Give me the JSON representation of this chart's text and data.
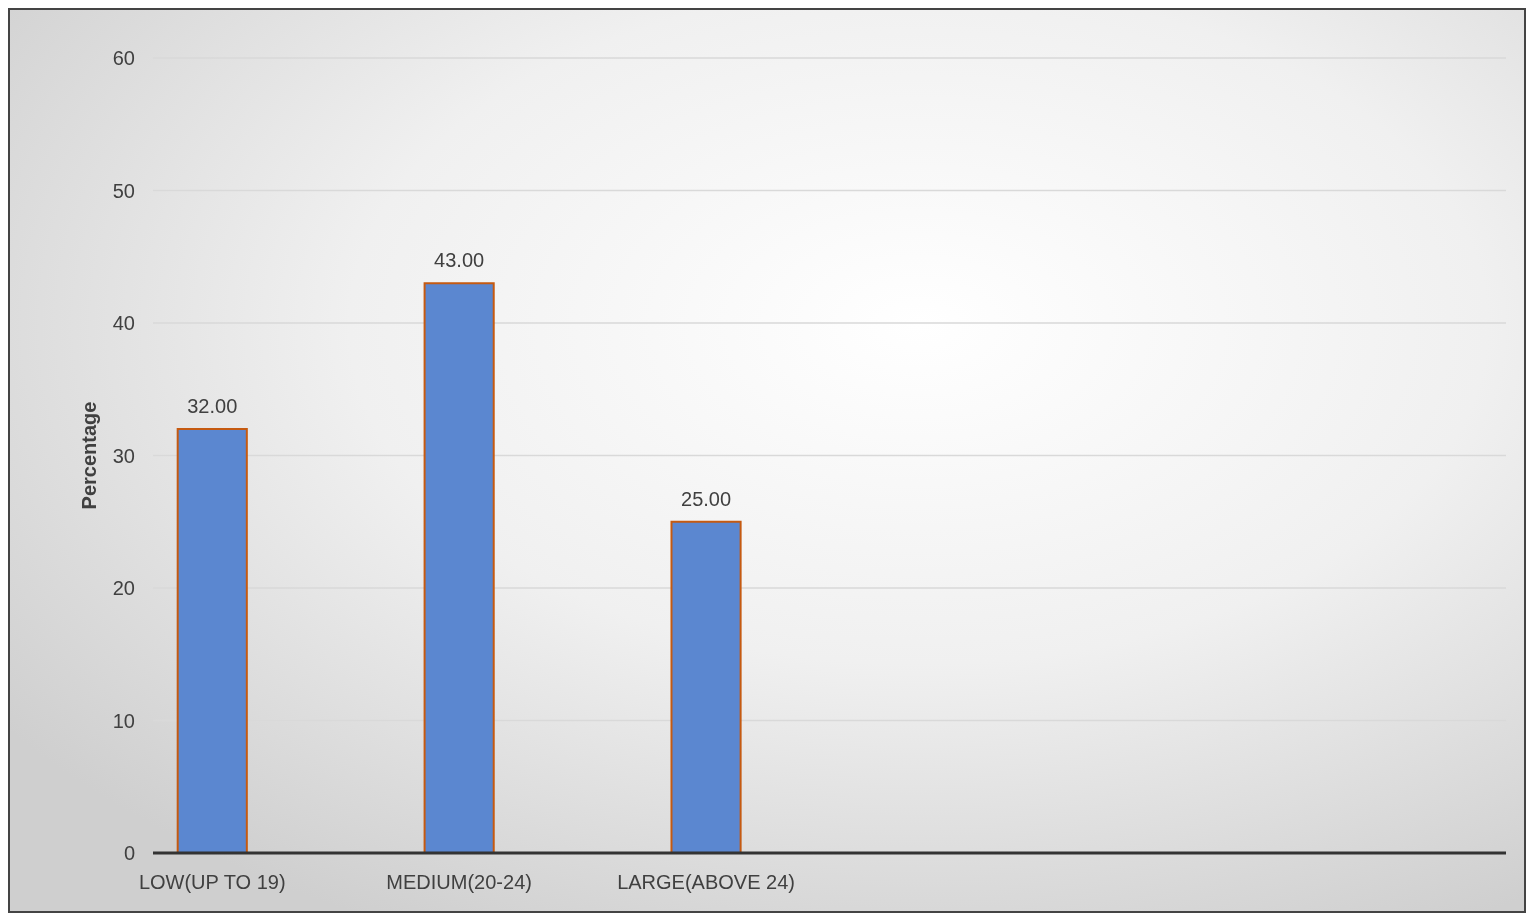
{
  "chart_data": {
    "type": "bar",
    "ylabel": "Percentage",
    "categories": [
      "LOW(UP TO 19)",
      "MEDIUM(20-24)",
      "LARGE(ABOVE 24)",
      null,
      null,
      null
    ],
    "values": [
      32,
      43,
      25,
      null,
      null,
      null
    ],
    "value_labels": [
      "32.00",
      "43.00",
      "25.00",
      null,
      null,
      null
    ],
    "color": "#5b87d0",
    "ylim": [
      0,
      60
    ],
    "yticks": [
      0,
      10,
      20,
      30,
      40,
      50,
      60
    ],
    "grid": "y"
  }
}
